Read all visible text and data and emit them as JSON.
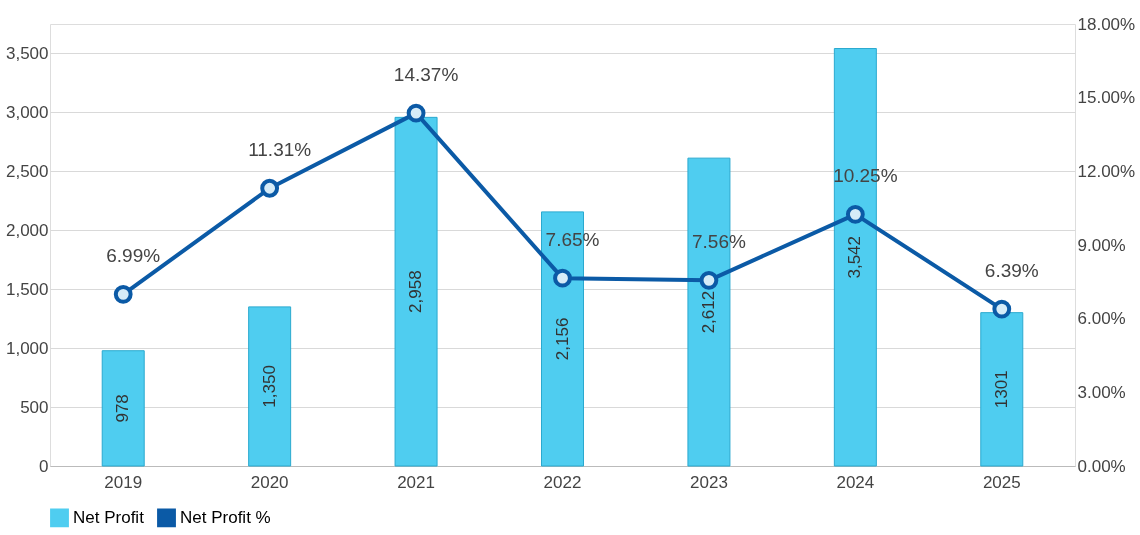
{
  "chart_data": {
    "type": "bar",
    "categories": [
      "2019",
      "2020",
      "2021",
      "2022",
      "2023",
      "2024",
      "2025"
    ],
    "series": [
      {
        "name": "Net Profit",
        "color": "#4fcdf0",
        "values": [
          978,
          1350,
          2958,
          2156,
          2612,
          3542,
          1301
        ],
        "value_labels": [
          "978",
          "1,350",
          "2,958",
          "2,156",
          "2,612",
          "3,542",
          "1301"
        ]
      },
      {
        "name": "Net Profit %",
        "type": "line",
        "axis": "y2",
        "color": "#0b5aa6",
        "values": [
          6.99,
          11.31,
          14.37,
          7.65,
          7.56,
          10.25,
          6.39
        ],
        "value_labels": [
          "6.99%",
          "11.31%",
          "14.37%",
          "7.65%",
          "7.56%",
          "10.25%",
          "6.39%"
        ]
      }
    ],
    "ylim": [
      0,
      3750
    ],
    "yticks": [
      {
        "value": 0,
        "label": "0"
      },
      {
        "value": 500,
        "label": "500"
      },
      {
        "value": 1000,
        "label": "1,000"
      },
      {
        "value": 1500,
        "label": "1,500"
      },
      {
        "value": 2000,
        "label": "2,000"
      },
      {
        "value": 2500,
        "label": "2,500"
      },
      {
        "value": 3000,
        "label": "3,000"
      },
      {
        "value": 3500,
        "label": "3,500"
      }
    ],
    "y2lim": [
      0,
      18
    ],
    "y2ticks": [
      {
        "value": 0,
        "label": "0.00%"
      },
      {
        "value": 3,
        "label": "3.00%"
      },
      {
        "value": 6,
        "label": "6.00%"
      },
      {
        "value": 9,
        "label": "9.00%"
      },
      {
        "value": 12,
        "label": "12.00%"
      },
      {
        "value": 15,
        "label": "15.00%"
      },
      {
        "value": 18,
        "label": "18.00%"
      }
    ],
    "grid": "y",
    "legend": "bottom",
    "marker": "circle",
    "line_style": "solid"
  }
}
